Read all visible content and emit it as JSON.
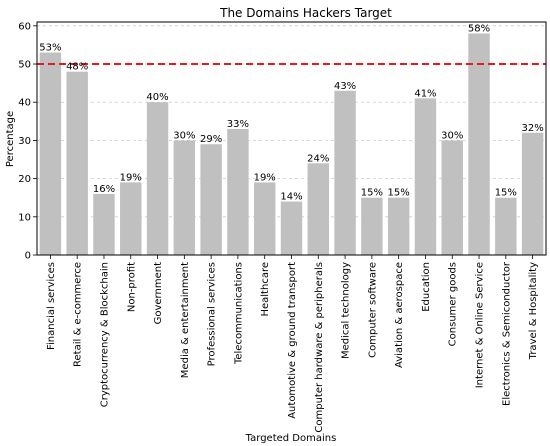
{
  "chart_data": {
    "type": "bar",
    "title": "The Domains Hackers Target",
    "xlabel": "Targeted Domains",
    "ylabel": "Percentage",
    "ylim": [
      0,
      61
    ],
    "yticks": [
      0,
      10,
      20,
      30,
      40,
      50,
      60
    ],
    "grid": "y-dashed",
    "reference_line": {
      "y": 50,
      "color": "#e41a1c",
      "style": "dashed"
    },
    "bar_color": "#c0c0c0",
    "categories": [
      "Financial services",
      "Retail & e-commerce",
      "Cryptocurrency & Blockchain",
      "Non-profit",
      "Government",
      "Media & entertainment",
      "Professional services",
      "Telecommunications",
      "Healthcare",
      "Automotive & ground transport",
      "Computer hardware & peripherals",
      "Medical technology",
      "Computer software",
      "Aviation & aerospace",
      "Education",
      "Consumer goods",
      "Internet & Online Service",
      "Electronics & Semiconductor",
      "Travel & Hospitality"
    ],
    "values": [
      53,
      48,
      16,
      19,
      40,
      30,
      29,
      33,
      19,
      14,
      24,
      43,
      15,
      15,
      41,
      30,
      58,
      15,
      32
    ],
    "labels": [
      "53%",
      "48%",
      "16%",
      "19%",
      "40%",
      "30%",
      "29%",
      "33%",
      "19%",
      "14%",
      "24%",
      "43%",
      "15%",
      "15%",
      "41%",
      "30%",
      "58%",
      "15%",
      "32%"
    ]
  }
}
